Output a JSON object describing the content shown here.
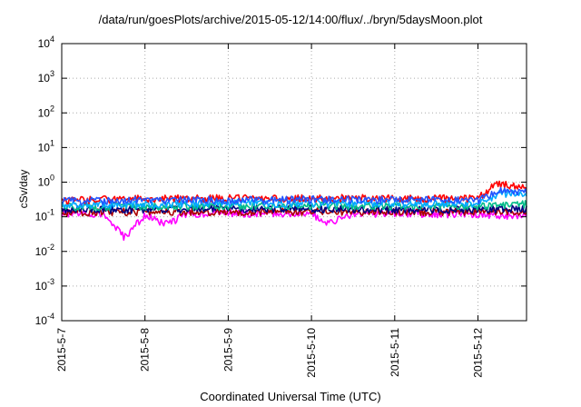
{
  "chart_data": {
    "type": "line",
    "title": "/data/run/goesPlots/archive/2015-05-12/14:00/flux/../bryn/5daysMoon.plot",
    "xlabel": "Coordinated Universal Time (UTC)",
    "ylabel": "cSv/day",
    "y_scale": "log",
    "ylim": [
      0.0001,
      10000
    ],
    "xlim": [
      "2015-05-07T00:00",
      "2015-05-12T14:00"
    ],
    "x_tick_labels": [
      "2015-5-7",
      "2015-5-8",
      "2015-5-9",
      "2015-5-10",
      "2015-5-11",
      "2015-5-12"
    ],
    "y_ticks": [
      {
        "base": "10",
        "exp": "-4"
      },
      {
        "base": "10",
        "exp": "-3"
      },
      {
        "base": "10",
        "exp": "-2"
      },
      {
        "base": "10",
        "exp": "-1"
      },
      {
        "base": "10",
        "exp": "0"
      },
      {
        "base": "10",
        "exp": "1"
      },
      {
        "base": "10",
        "exp": "2"
      },
      {
        "base": "10",
        "exp": "3"
      },
      {
        "base": "10",
        "exp": "4"
      }
    ],
    "grid": true,
    "legend": "none",
    "series": [
      {
        "color": "#ff00ff",
        "x": [
          "2015-05-07T00:00",
          "2015-05-07T12:00",
          "2015-05-07T18:00",
          "2015-05-08T00:00",
          "2015-05-08T06:00",
          "2015-05-08T12:00",
          "2015-05-09T00:00",
          "2015-05-09T12:00",
          "2015-05-10T00:00",
          "2015-05-10T04:00",
          "2015-05-10T12:00",
          "2015-05-11T00:00",
          "2015-05-11T12:00",
          "2015-05-12T00:00",
          "2015-05-12T06:00",
          "2015-05-12T14:00"
        ],
        "values": [
          0.12,
          0.12,
          0.025,
          0.11,
          0.06,
          0.12,
          0.13,
          0.12,
          0.13,
          0.06,
          0.12,
          0.13,
          0.12,
          0.12,
          0.11,
          0.11
        ]
      },
      {
        "color": "#aa0000",
        "x": [
          "2015-05-07T00:00",
          "2015-05-08T00:00",
          "2015-05-09T00:00",
          "2015-05-10T00:00",
          "2015-05-11T00:00",
          "2015-05-12T00:00",
          "2015-05-12T14:00"
        ],
        "values": [
          0.13,
          0.14,
          0.14,
          0.14,
          0.14,
          0.14,
          0.14
        ]
      },
      {
        "color": "#000080",
        "x": [
          "2015-05-07T00:00",
          "2015-05-08T00:00",
          "2015-05-09T00:00",
          "2015-05-10T00:00",
          "2015-05-11T00:00",
          "2015-05-12T00:00",
          "2015-05-12T14:00"
        ],
        "values": [
          0.16,
          0.16,
          0.17,
          0.17,
          0.16,
          0.16,
          0.17
        ]
      },
      {
        "color": "#00bb88",
        "x": [
          "2015-05-07T00:00",
          "2015-05-08T00:00",
          "2015-05-09T00:00",
          "2015-05-10T00:00",
          "2015-05-11T00:00",
          "2015-05-12T00:00",
          "2015-05-12T06:00",
          "2015-05-12T14:00"
        ],
        "values": [
          0.19,
          0.2,
          0.2,
          0.21,
          0.2,
          0.2,
          0.22,
          0.23
        ]
      },
      {
        "color": "#00aaff",
        "x": [
          "2015-05-07T00:00",
          "2015-05-08T00:00",
          "2015-05-09T00:00",
          "2015-05-10T00:00",
          "2015-05-11T00:00",
          "2015-05-12T00:00",
          "2015-05-12T06:00",
          "2015-05-12T14:00"
        ],
        "values": [
          0.22,
          0.23,
          0.24,
          0.24,
          0.24,
          0.24,
          0.45,
          0.5
        ]
      },
      {
        "color": "#ff0000",
        "x": [
          "2015-05-07T00:00",
          "2015-05-08T00:00",
          "2015-05-09T00:00",
          "2015-05-10T00:00",
          "2015-05-11T00:00",
          "2015-05-12T00:00",
          "2015-05-12T05:00",
          "2015-05-12T14:00"
        ],
        "values": [
          0.3,
          0.33,
          0.34,
          0.34,
          0.34,
          0.33,
          0.9,
          0.7
        ]
      },
      {
        "color": "#2255ff",
        "x": [
          "2015-05-07T00:00",
          "2015-05-08T00:00",
          "2015-05-09T00:00",
          "2015-05-10T00:00",
          "2015-05-11T00:00",
          "2015-05-12T00:00",
          "2015-05-12T06:00",
          "2015-05-12T14:00"
        ],
        "values": [
          0.28,
          0.3,
          0.3,
          0.31,
          0.3,
          0.3,
          0.55,
          0.5
        ]
      }
    ]
  }
}
